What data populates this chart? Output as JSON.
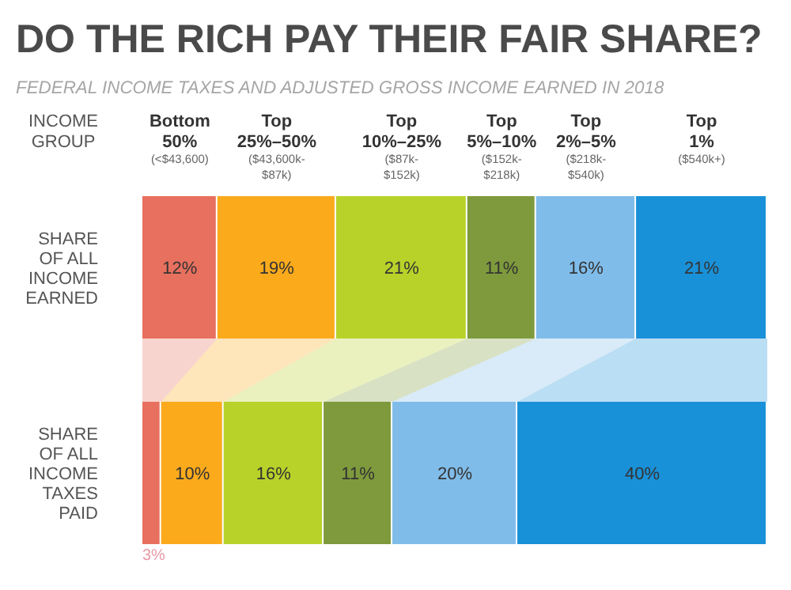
{
  "chart_data": {
    "type": "bar",
    "orientation": "horizontal",
    "stacked": true,
    "title": "DO THE RICH PAY THEIR FAIR SHARE?",
    "subtitle": "FEDERAL INCOME TAXES AND ADJUSTED GROSS INCOME EARNED IN 2018",
    "legend_title": "INCOME GROUP",
    "legend": "top",
    "categories": [
      "SHARE OF ALL INCOME EARNED",
      "SHARE OF ALL INCOME TAXES PAID"
    ],
    "series": [
      {
        "name": "Bottom 50%",
        "color": "#e8705e",
        "values": [
          12,
          3
        ],
        "value_labels": [
          "12%",
          "3%"
        ]
      },
      {
        "name": "Top 25%–50%",
        "color": "#fbaa1c",
        "values": [
          19,
          10
        ],
        "value_labels": [
          "19%",
          "10%"
        ]
      },
      {
        "name": "Top 10%–25%",
        "color": "#b8d22a",
        "values": [
          21,
          16
        ],
        "value_labels": [
          "21%",
          "16%"
        ]
      },
      {
        "name": "Top 5%–10%",
        "color": "#7e9a3c",
        "values": [
          11,
          11
        ],
        "value_labels": [
          "11%",
          "11%"
        ]
      },
      {
        "name": "Top 2%–5%",
        "color": "#80bce9",
        "values": [
          16,
          20
        ],
        "value_labels": [
          "16%",
          "20%"
        ]
      },
      {
        "name": "Top 1%",
        "color": "#1991d8",
        "values": [
          21,
          40
        ],
        "value_labels": [
          "21%",
          "40%"
        ]
      }
    ],
    "annotations": [
      "(<$43,600)",
      "($43,600k-$87k)",
      "($87k-$152k)",
      "($152k-$218k)",
      "($218k-$540k)",
      "($540k+)"
    ]
  }
}
